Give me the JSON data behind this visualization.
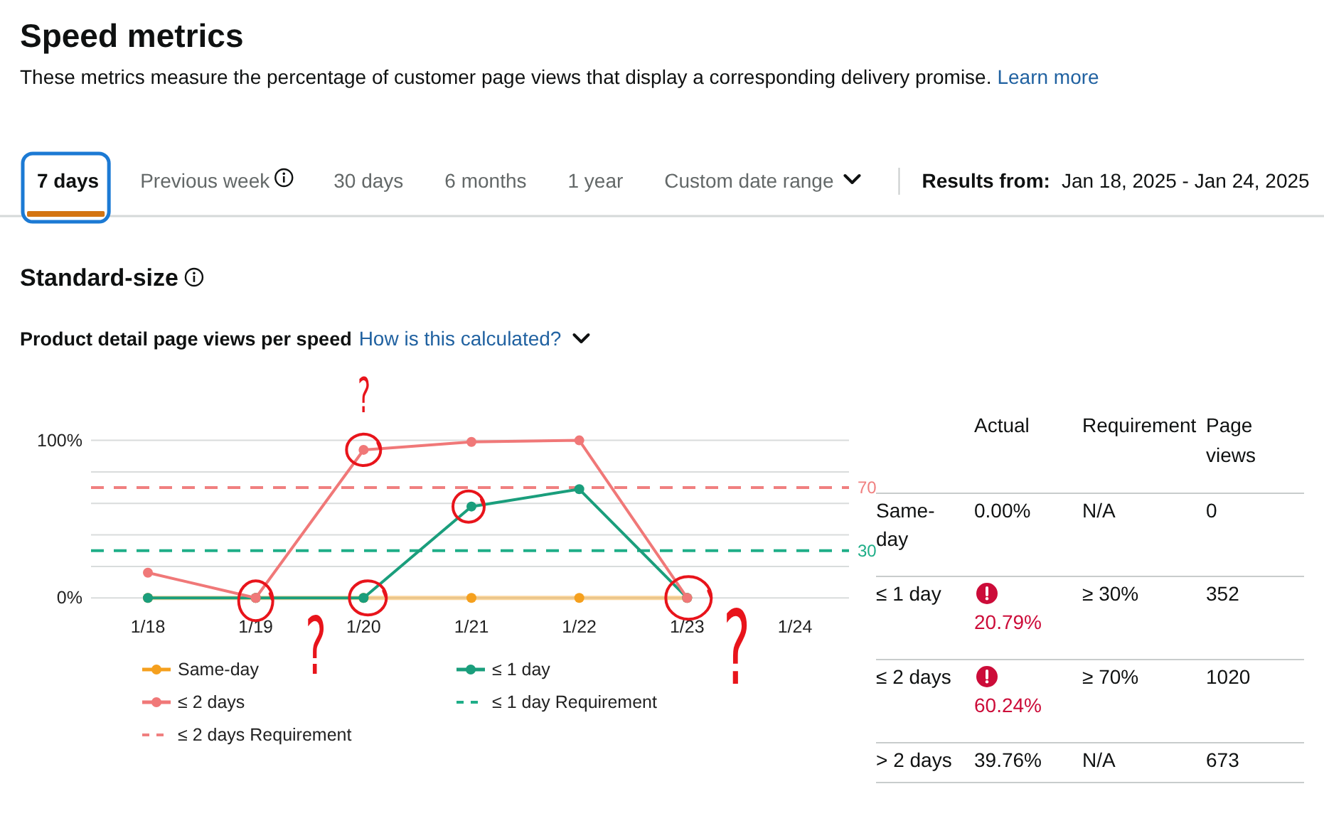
{
  "chart_data": [
    {
      "type": "other",
      "title": "Speed metrics",
      "subtitle": "These metrics measure the percentage of customer page views that display a corresponding delivery promise.",
      "annotations": [
        "Learn more",
        "7 days",
        "Previous week",
        "30 days",
        "6 months",
        "1 year",
        "Custom date range",
        "Results from:",
        "Jan 18, 2025 - Jan 24, 2025",
        "Standard-size"
      ]
    },
    {
      "type": "line",
      "title": "Product detail page views per speed",
      "categories": [
        "1/18",
        "1/19",
        "1/20",
        "1/21",
        "1/22",
        "1/23",
        "1/24"
      ],
      "series": [
        {
          "name": "Same-day",
          "color": "#f5a01e",
          "values": [
            0,
            0,
            0,
            0,
            0,
            0,
            null
          ]
        },
        {
          "name": "≤ 1 day",
          "color": "#1a9e7c",
          "values": [
            0,
            0,
            0,
            58,
            69,
            0,
            null
          ]
        },
        {
          "name": "≤ 2 days",
          "color": "#f07878",
          "values": [
            16,
            0,
            94,
            99,
            100,
            0,
            null
          ]
        }
      ],
      "ylim": [
        0,
        100
      ],
      "yticks": [
        {
          "value": 0,
          "label": "0%"
        },
        {
          "value": 20,
          "label": null
        },
        {
          "value": 40,
          "label": null
        },
        {
          "value": 60,
          "label": null
        },
        {
          "value": 80,
          "label": null
        },
        {
          "value": 100,
          "label": "100%"
        }
      ],
      "grid": "y",
      "marker": "circle",
      "legend": "bottom",
      "ref_lines": [
        {
          "axis": "y",
          "value": 30,
          "label": "≤ 1 day Requirement",
          "color": "#1fae88",
          "line_style": "dashed"
        },
        {
          "axis": "y",
          "value": 70,
          "label": "≤ 2 days Requirement",
          "color": "#f08080",
          "line_style": "dashed"
        }
      ],
      "annotations": [
        "How is this calculated?",
        "70",
        "30",
        "?",
        "?",
        "?"
      ]
    },
    {
      "type": "other",
      "categories": [
        "Actual",
        "Requirement",
        "Page views"
      ],
      "y_categories": [
        "Same-day",
        "≤ 1 day",
        "≤ 2 days",
        "> 2 days"
      ],
      "cell_labels": [
        [
          "0.00%",
          "N/A",
          "0"
        ],
        [
          "20.79%",
          "≥ 30%",
          "352"
        ],
        [
          "60.24%",
          "≥ 70%",
          "1020"
        ],
        [
          "39.76%",
          "N/A",
          "673"
        ]
      ],
      "colors": [
        null,
        "#cc0c39",
        "#cc0c39",
        null
      ]
    }
  ]
}
